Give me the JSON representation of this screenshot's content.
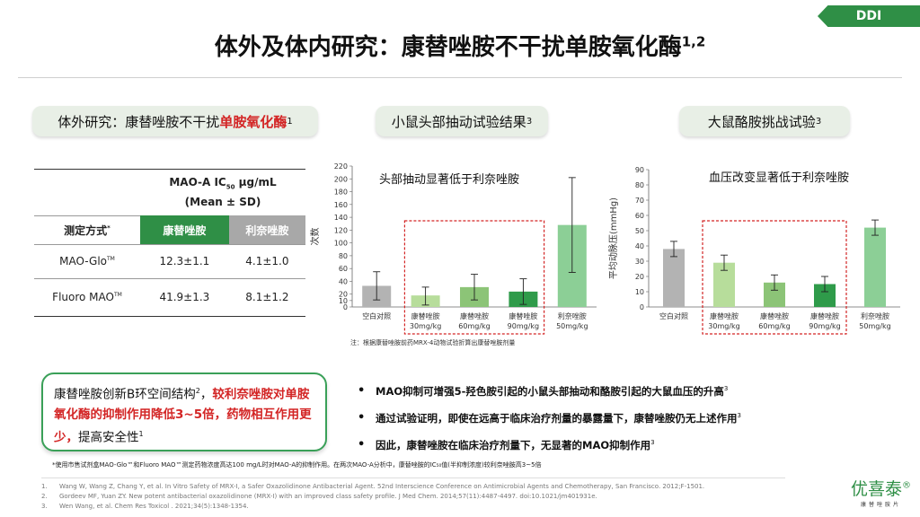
{
  "tag": "DDI",
  "title": "体外及体内研究：康替唑胺不干扰单胺氧化酶",
  "title_sup": "1,2",
  "left_pill": {
    "prefix": "体外研究：康替唑胺不干扰",
    "highlight": "单胺氧化酶",
    "sup": "1"
  },
  "mid_pill": {
    "label": "小鼠头部抽动试验结果",
    "sup": "3"
  },
  "right_pill": {
    "label": "大鼠酪胺挑战试验",
    "sup": "3"
  },
  "table": {
    "header1": "MAO-A IC",
    "header1_sub": "50",
    "header1_unit": " μg/mL",
    "header2": "(Mean ± SD)",
    "method_label": "测定方式",
    "method_sup": "*",
    "col1": "康替唑胺",
    "col2": "利奈唑胺",
    "rows": [
      {
        "method": "MAO-Glo",
        "tm": "TM",
        "v1": "12.3±1.1",
        "v2": "4.1±1.0"
      },
      {
        "method": "Fluoro MAO",
        "tm": "TM",
        "v1": "41.9±1.3",
        "v2": "8.1±1.2"
      }
    ]
  },
  "chart_data": [
    {
      "type": "bar",
      "title": "头部抽动显著低于利奈唑胺",
      "ylabel": "次数",
      "ylim": [
        0,
        220
      ],
      "yticks": [
        0,
        10,
        20,
        40,
        60,
        80,
        100,
        120,
        140,
        160,
        180,
        200,
        220
      ],
      "categories": [
        [
          "空白对照"
        ],
        [
          "康替唑胺",
          "30mg/kg"
        ],
        [
          "康替唑胺",
          "60mg/kg"
        ],
        [
          "康替唑胺",
          "90mg/kg"
        ],
        [
          "利奈唑胺",
          "50mg/kg"
        ]
      ],
      "values": [
        33,
        18,
        31,
        24,
        128
      ],
      "errors": [
        [
          11,
          55
        ],
        [
          3,
          31
        ],
        [
          11,
          51
        ],
        [
          4,
          44
        ],
        [
          54,
          202
        ]
      ],
      "colors": [
        "#b3b3b3",
        "#b7dd9b",
        "#8cc477",
        "#2f9b4a",
        "#8ccf96"
      ]
    },
    {
      "type": "bar",
      "title": "血压改变显著低于利奈唑胺",
      "ylabel": "平均动脉压(mmHg)",
      "ylim": [
        0,
        90
      ],
      "yticks": [
        0,
        10,
        20,
        30,
        40,
        50,
        60,
        70,
        80,
        90
      ],
      "categories": [
        [
          "空白对照"
        ],
        [
          "康替唑胺",
          "30mg/kg"
        ],
        [
          "康替唑胺",
          "60mg/kg"
        ],
        [
          "康替唑胺",
          "90mg/kg"
        ],
        [
          "利奈唑胺",
          "50mg/kg"
        ]
      ],
      "values": [
        38,
        29,
        16,
        15,
        52
      ],
      "errors": [
        [
          33,
          43
        ],
        [
          24,
          34
        ],
        [
          11,
          21
        ],
        [
          10,
          20
        ],
        [
          47,
          57
        ]
      ],
      "colors": [
        "#b3b3b3",
        "#b7dd9b",
        "#8cc477",
        "#2f9b4a",
        "#8ccf96"
      ]
    }
  ],
  "chart_note": "注：根据康替唑胺前药MRX-4动物试验折算出康替唑胺剂量",
  "callout": {
    "p1": "康替唑胺创新B环空间结构",
    "p1_sup": "2",
    "p2": "，",
    "red": "较利奈唑胺对单胺氧化酶的抑制作用降低3~5倍，药物相互作用更少，",
    "p3": "提高安全性",
    "p3_sup": "1"
  },
  "bullets": [
    {
      "text": "MAO抑制可增强5-羟色胺引起的小鼠头部抽动和酪胺引起的大鼠血压的升高",
      "sup": "3"
    },
    {
      "text": "通过试验证明，即使在远高于临床治疗剂量的暴露量下，康替唑胺仍无上述作用",
      "sup": "3"
    },
    {
      "text": "因此，康替唑胺在临床治疗剂量下，无显著的MAO抑制作用",
      "sup": "3"
    }
  ],
  "footnote": "*使用市售试剂盒MAO-Glo™和Fluoro MAO™测定药物浓度高达100 mg/L时对MAO-A的抑制作用。在两次MAO-A分析中，康替唑胺的IC₅₀值(半抑制浓度)较利奈唑胺高3~5倍",
  "refs": [
    {
      "n": "1.",
      "t": "Wang W, Wang Z, Chang Y, et al. In Vitro Safety of MRX-I, a Safer Oxazolidinone Antibacterial Agent. 52nd Interscience Conference on Antimicrobial Agents and Chemotherapy, San Francisco. 2012;F-1501."
    },
    {
      "n": "2.",
      "t": "Gordeev MF, Yuan ZY. New potent antibacterial oxazolidinone (MRX-I) with an improved class safety profile. J Med Chem. 2014;57(11):4487-4497. doi:10.1021/jm401931e."
    },
    {
      "n": "3.",
      "t": "Wen Wang, et al. Chem Res Toxicol . 2021;34(5):1348-1354."
    }
  ],
  "logo": {
    "main": "优喜泰",
    "mark": "®",
    "sub": "康替唑胺片"
  }
}
